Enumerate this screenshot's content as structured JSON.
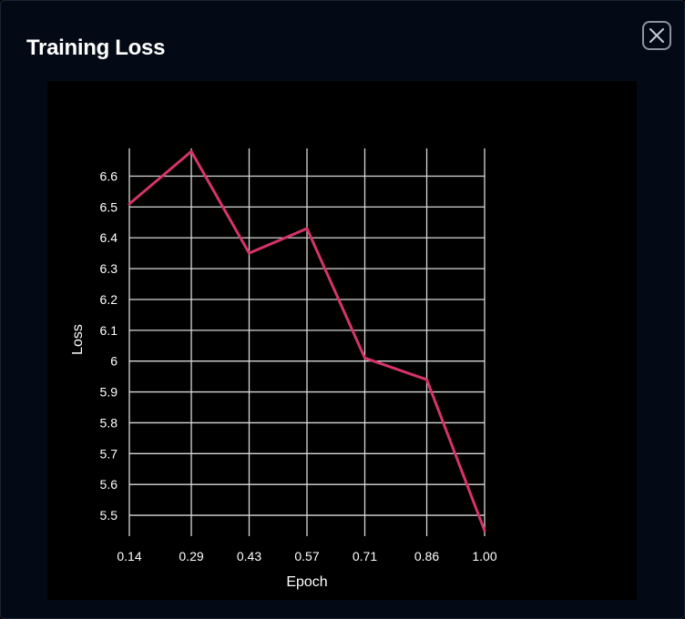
{
  "modal": {
    "title": "Training Loss",
    "close_icon": "close-icon"
  },
  "chart_data": {
    "type": "line",
    "title": "Training Loss",
    "xlabel": "Epoch",
    "ylabel": "Loss",
    "x": [
      0.14,
      0.29,
      0.43,
      0.57,
      0.71,
      0.86,
      1.0
    ],
    "x_tick_labels": [
      "0.14",
      "0.29",
      "0.43",
      "0.57",
      "0.71",
      "0.86",
      "1.00"
    ],
    "series": [
      {
        "values": [
          6.51,
          6.68,
          6.35,
          6.43,
          6.01,
          5.94,
          5.45
        ],
        "color": "#d6336c"
      }
    ],
    "ylim": [
      5.45,
      6.69
    ],
    "y_ticks": [
      5.5,
      5.6,
      5.7,
      5.8,
      5.9,
      6.0,
      6.1,
      6.2,
      6.3,
      6.4,
      6.5,
      6.6
    ],
    "y_tick_labels": [
      "5.5",
      "5.6",
      "5.7",
      "5.8",
      "5.9",
      "6",
      "6.1",
      "6.2",
      "6.3",
      "6.4",
      "6.5",
      "6.6"
    ],
    "grid": true,
    "legend": "none",
    "colors": {
      "background": "#000000",
      "grid": "#d9d9d9",
      "line": "#d6336c"
    }
  }
}
